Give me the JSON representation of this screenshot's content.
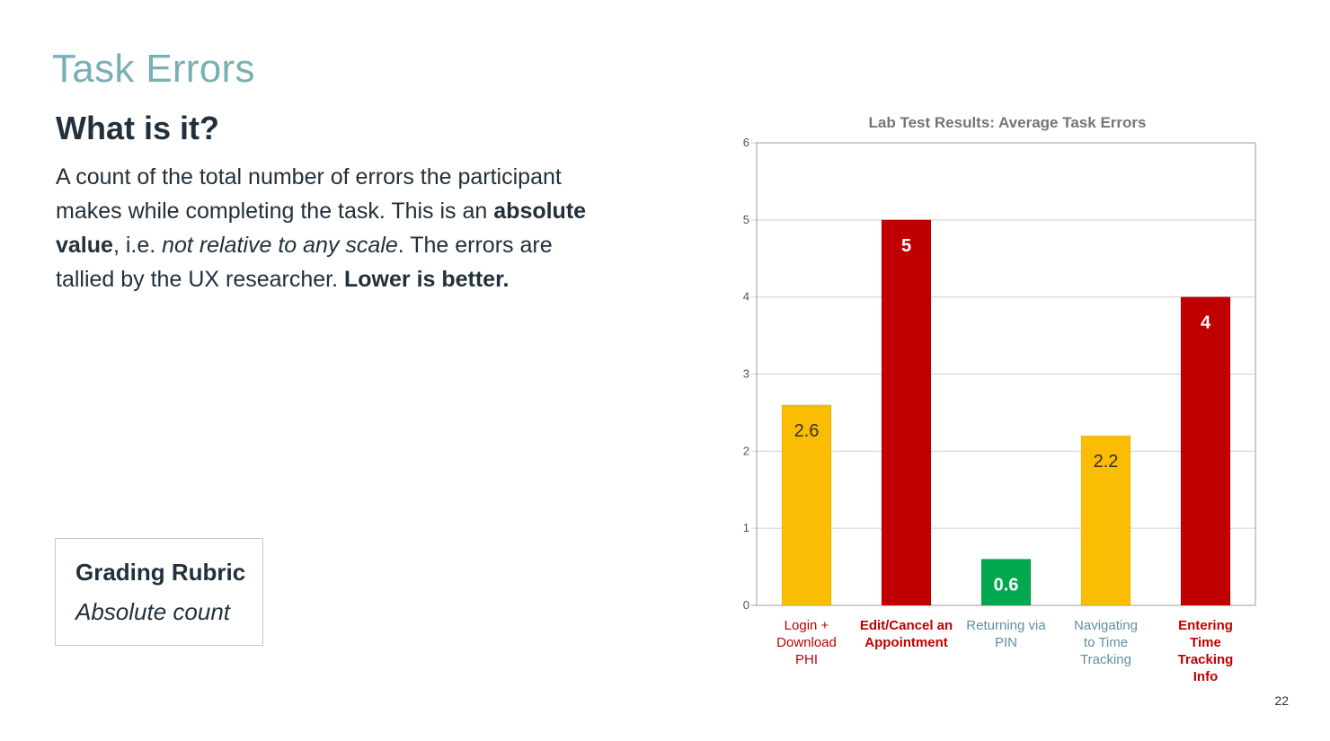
{
  "slide": {
    "title": "Task Errors",
    "subhead": "What is it?",
    "description": {
      "part1": "A count of the total number of errors the participant makes while completing the task. This is an ",
      "bold1": "absolute value",
      "part2": ", i.e. ",
      "italic1": "not relative to any scale",
      "part3": ". The errors are tallied by the UX researcher. ",
      "bold2": "Lower is better."
    },
    "page_number": "22"
  },
  "rubric": {
    "title": "Grading Rubric",
    "value": "Absolute count"
  },
  "colors": {
    "title": "#79b0b4",
    "text": "#22303b",
    "bar_yellow": "#fbbc04",
    "bar_red": "#c00000",
    "bar_green": "#00a84f",
    "grid": "#cfcfcf"
  },
  "chart_data": {
    "type": "bar",
    "title": "Lab Test Results: Average Task Errors",
    "categories": [
      "Login + Download PHI",
      "Edit/Cancel an Appointment",
      "Returning via PIN",
      "Navigating to Time Tracking",
      "Entering Time Tracking Info"
    ],
    "category_lines": [
      [
        "Login +",
        "Download",
        "PHI"
      ],
      [
        "Edit/Cancel an",
        "Appointment"
      ],
      [
        "Returning via",
        "PIN"
      ],
      [
        "Navigating",
        "to Time",
        "Tracking"
      ],
      [
        "Entering",
        "Time",
        "Tracking",
        "Info"
      ]
    ],
    "values": [
      2.6,
      5,
      0.6,
      2.2,
      4
    ],
    "value_labels": [
      "2.6",
      "5",
      "0.6",
      "2.2",
      "4"
    ],
    "bar_colors": [
      "#fbbc04",
      "#c00000",
      "#00a84f",
      "#fbbc04",
      "#c00000"
    ],
    "label_colors": [
      "#c00000",
      "#c00000",
      "#5f8fa7",
      "#5f8fa7",
      "#c00000"
    ],
    "label_bold": [
      false,
      true,
      false,
      false,
      true
    ],
    "value_label_colors": [
      "#333333",
      "#ffffff",
      "#ffffff",
      "#333333",
      "#ffffff"
    ],
    "ylim": [
      0,
      6
    ],
    "yticks": [
      0,
      1,
      2,
      3,
      4,
      5,
      6
    ],
    "xlabel": "",
    "ylabel": "",
    "grid": true,
    "legend": "none"
  }
}
